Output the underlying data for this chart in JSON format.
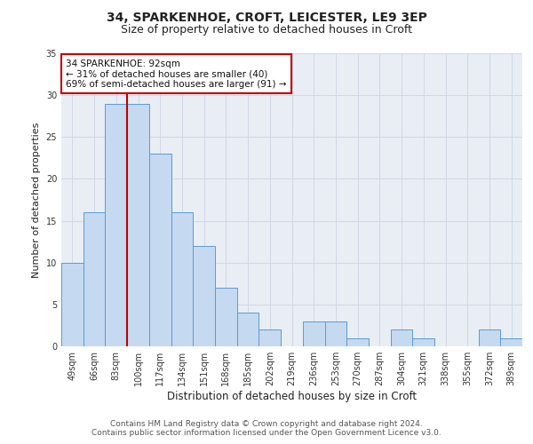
{
  "title": "34, SPARKENHOE, CROFT, LEICESTER, LE9 3EP",
  "subtitle": "Size of property relative to detached houses in Croft",
  "xlabel": "Distribution of detached houses by size in Croft",
  "ylabel": "Number of detached properties",
  "categories": [
    "49sqm",
    "66sqm",
    "83sqm",
    "100sqm",
    "117sqm",
    "134sqm",
    "151sqm",
    "168sqm",
    "185sqm",
    "202sqm",
    "219sqm",
    "236sqm",
    "253sqm",
    "270sqm",
    "287sqm",
    "304sqm",
    "321sqm",
    "338sqm",
    "355sqm",
    "372sqm",
    "389sqm"
  ],
  "values": [
    10,
    16,
    29,
    29,
    23,
    16,
    12,
    7,
    4,
    2,
    0,
    3,
    3,
    1,
    0,
    2,
    1,
    0,
    0,
    2,
    1
  ],
  "bar_color": "#c5d9f0",
  "bar_edge_color": "#5b9bd5",
  "marker_bar_index": 2,
  "marker_line_color": "#c00000",
  "annotation_line1": "34 SPARKENHOE: 92sqm",
  "annotation_line2": "← 31% of detached houses are smaller (40)",
  "annotation_line3": "69% of semi-detached houses are larger (91) →",
  "annotation_box_color": "#ffffff",
  "annotation_box_edge_color": "#c00000",
  "ylim": [
    0,
    35
  ],
  "yticks": [
    0,
    5,
    10,
    15,
    20,
    25,
    30,
    35
  ],
  "grid_color": "#d0d8e4",
  "background_color": "#e8eef4",
  "footer_line1": "Contains HM Land Registry data © Crown copyright and database right 2024.",
  "footer_line2": "Contains public sector information licensed under the Open Government Licence v3.0.",
  "title_fontsize": 10,
  "subtitle_fontsize": 9,
  "xlabel_fontsize": 8.5,
  "ylabel_fontsize": 8,
  "tick_fontsize": 7,
  "annotation_fontsize": 7.5,
  "footer_fontsize": 6.5
}
